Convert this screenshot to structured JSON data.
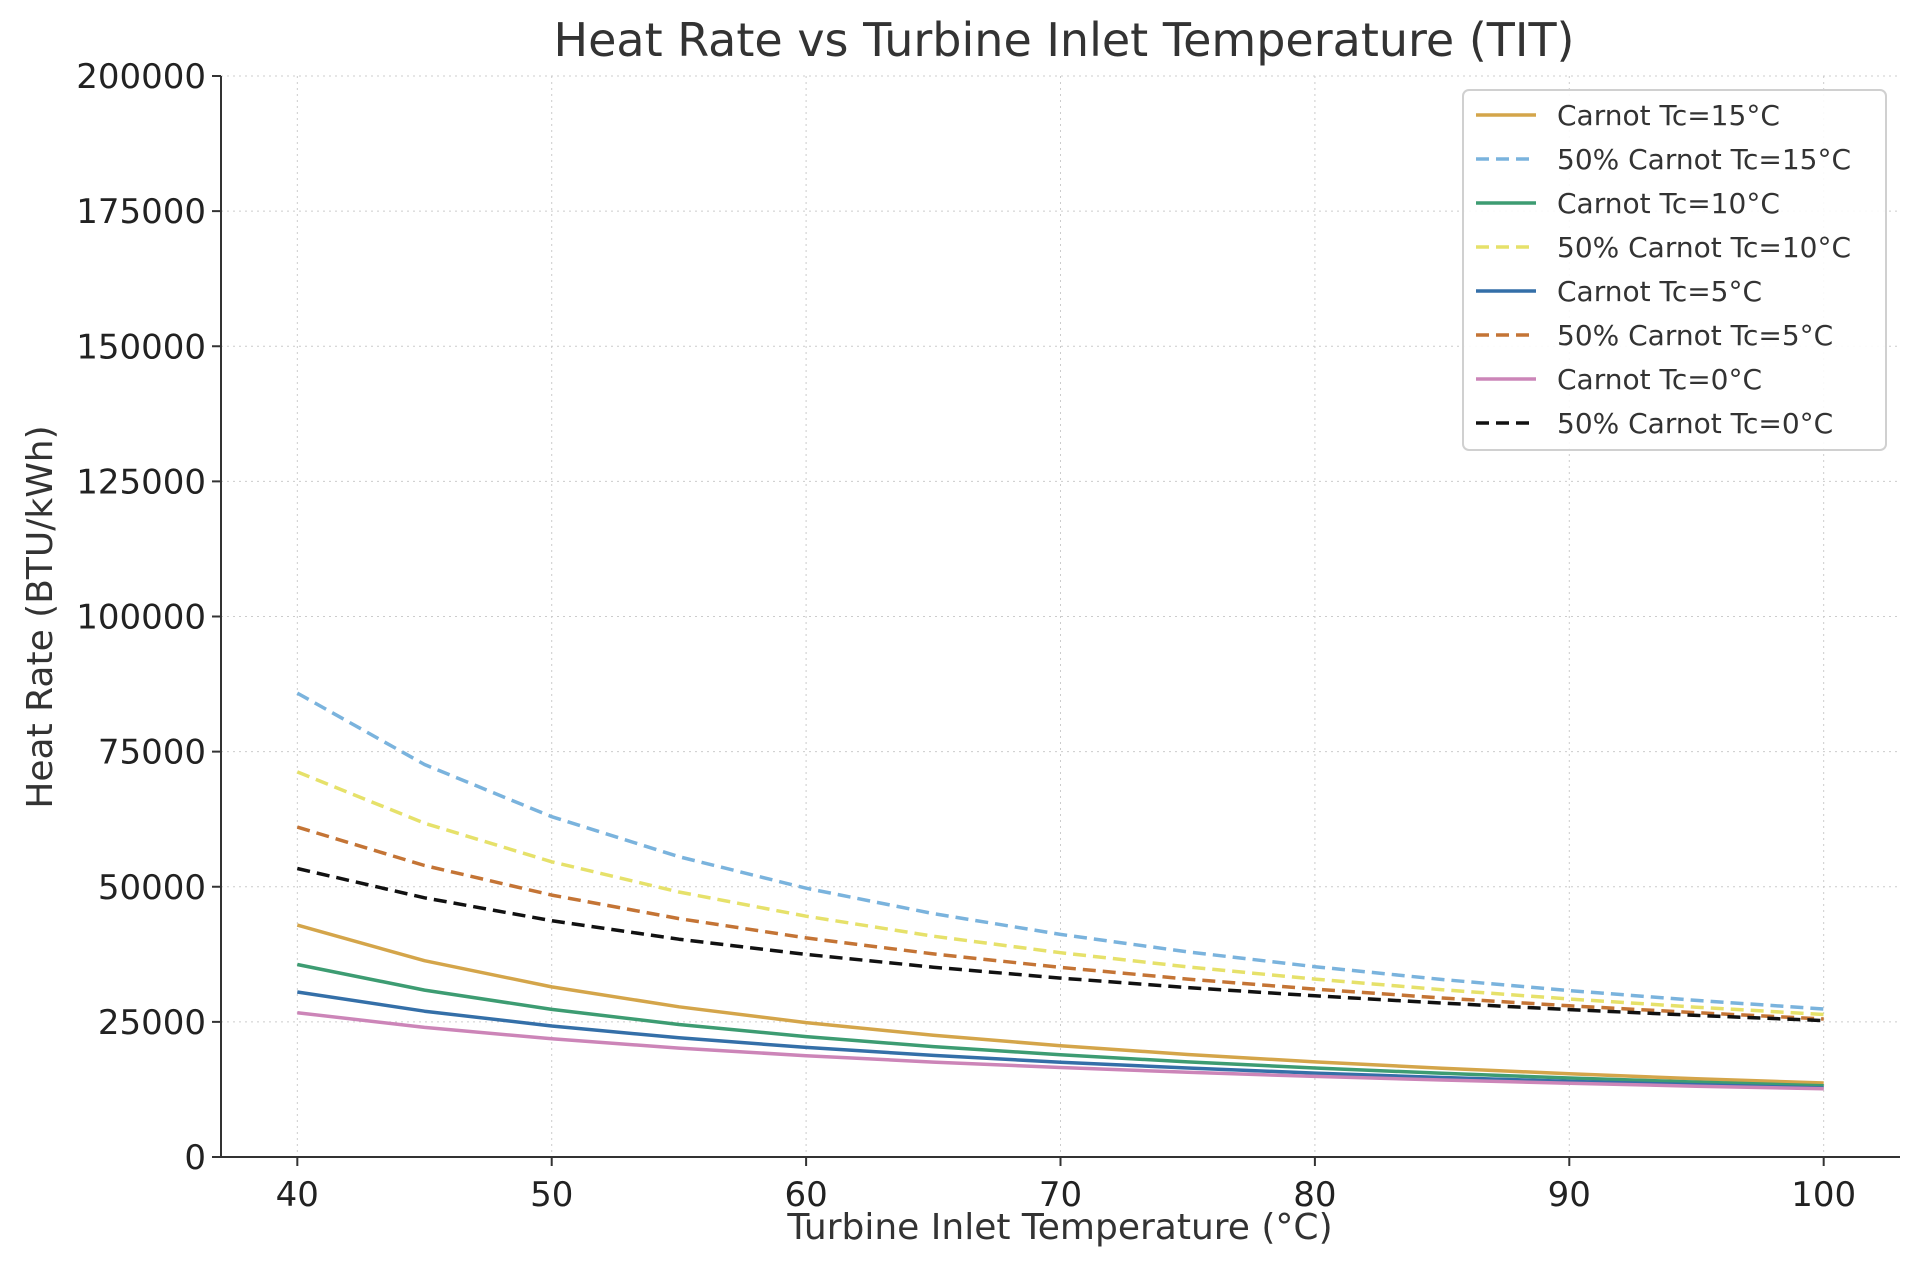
{
  "chart_data": {
    "type": "line",
    "title": "Heat Rate vs Turbine Inlet Temperature (TIT)",
    "xlabel": "Turbine Inlet Temperature (°C)",
    "ylabel": "Heat Rate (BTU/kWh)",
    "xlim": [
      37,
      103
    ],
    "ylim": [
      0,
      200000
    ],
    "xticks": [
      40,
      50,
      60,
      70,
      80,
      90,
      100
    ],
    "yticks": [
      0,
      25000,
      50000,
      75000,
      100000,
      125000,
      150000,
      175000,
      200000
    ],
    "grid": true,
    "legend_position": "top-right",
    "x": [
      40,
      45,
      50,
      55,
      60,
      65,
      70,
      75,
      80,
      85,
      90,
      95,
      100
    ],
    "series": [
      {
        "name": "Carnot Tc=15°C",
        "color": "#d4a54a",
        "dash": "solid",
        "values": [
          42910,
          36310,
          31480,
          27780,
          24870,
          22520,
          20590,
          18970,
          17600,
          16420,
          15390,
          14490,
          13690
        ]
      },
      {
        "name": "50% Carnot Tc=15°C",
        "color": "#7ab3dd",
        "dash": "dashed",
        "values": [
          85820,
          72620,
          62960,
          55560,
          49740,
          45040,
          41180,
          37940,
          35200,
          32840,
          30780,
          28980,
          27380
        ]
      },
      {
        "name": "Carnot Tc=10°C",
        "color": "#3d9c72",
        "dash": "solid",
        "values": [
          35620,
          30880,
          27310,
          24510,
          22280,
          20430,
          18900,
          17590,
          16460,
          15480,
          14620,
          13860,
          13180
        ]
      },
      {
        "name": "50% Carnot Tc=10°C",
        "color": "#e6e16a",
        "dash": "dashed",
        "values": [
          71240,
          61760,
          54620,
          49020,
          44560,
          40860,
          37800,
          35180,
          32920,
          30960,
          29240,
          27720,
          26360
        ]
      },
      {
        "name": "Carnot Tc=5°C",
        "color": "#346fa8",
        "dash": "solid",
        "values": [
          30520,
          26970,
          24230,
          22050,
          20270,
          18790,
          17540,
          16460,
          15530,
          14710,
          13990,
          13350,
          12770
        ]
      },
      {
        "name": "50% Carnot Tc=5°C",
        "color": "#c47435",
        "dash": "dashed",
        "values": [
          61040,
          53940,
          48460,
          44100,
          40540,
          37580,
          35080,
          32920,
          31060,
          29420,
          27980,
          26700,
          25540
        ]
      },
      {
        "name": "Carnot Tc=0°C",
        "color": "#cc85b8",
        "dash": "solid",
        "values": [
          26690,
          23980,
          21860,
          20150,
          18740,
          17560,
          16550,
          15670,
          14910,
          14240,
          13640,
          13100,
          12620
        ]
      },
      {
        "name": "50% Carnot Tc=0°C",
        "color": "#111111",
        "dash": "dashed",
        "values": [
          53380,
          47960,
          43720,
          40300,
          37480,
          35120,
          33100,
          31340,
          29820,
          28480,
          27280,
          26200,
          25240
        ]
      }
    ]
  }
}
